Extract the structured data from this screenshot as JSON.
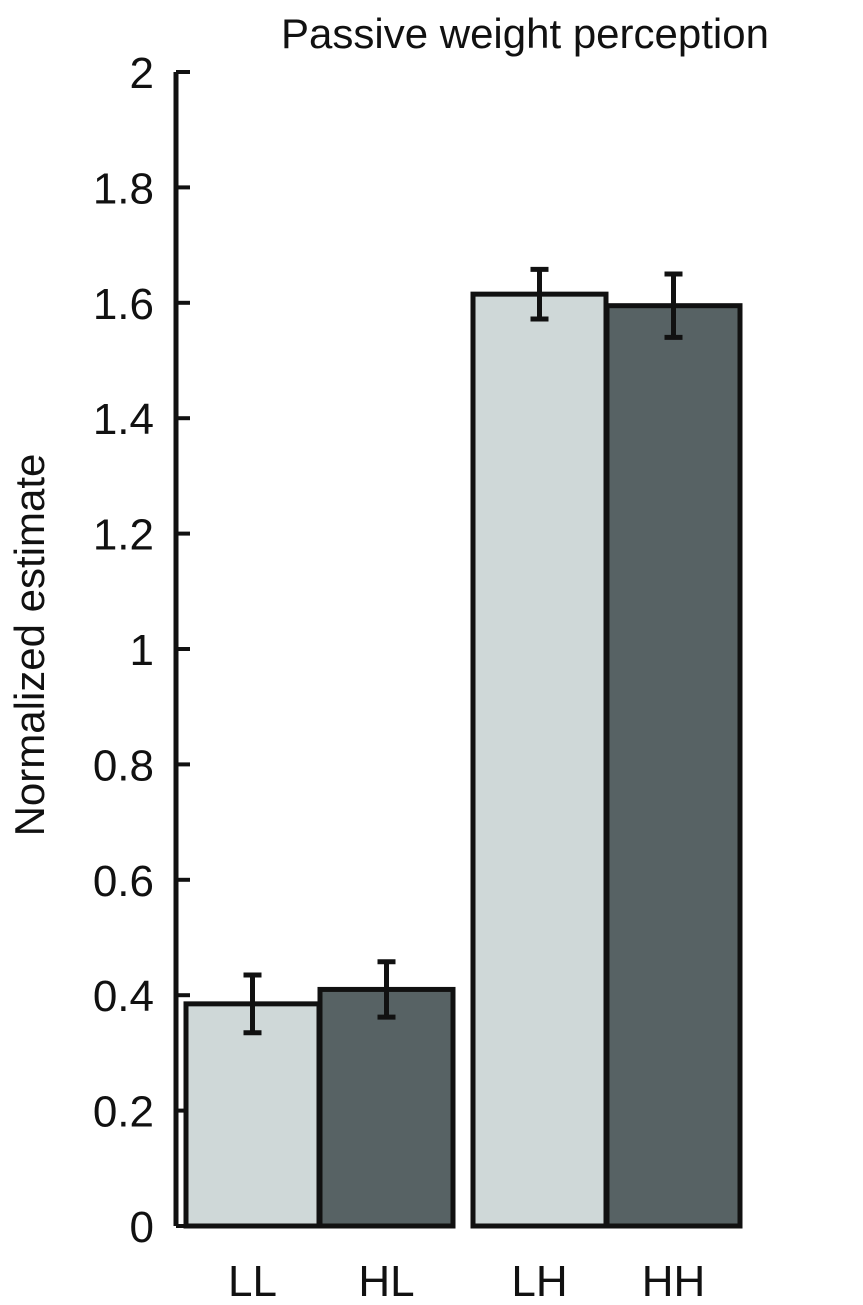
{
  "chart_data": {
    "type": "bar",
    "title": "Passive weight perception",
    "xlabel": "",
    "ylabel": "Normalized estimate",
    "categories": [
      "LL",
      "HL",
      "LH",
      "HH"
    ],
    "values": [
      0.385,
      0.41,
      1.615,
      1.595
    ],
    "error": [
      0.05,
      0.048,
      0.043,
      0.055
    ],
    "bar_colors": [
      "#cfd8d8",
      "#576264",
      "#cfd8d8",
      "#576264"
    ],
    "ylim": [
      0,
      2
    ],
    "yticks": [
      0,
      0.2,
      0.4,
      0.6,
      0.8,
      1,
      1.2,
      1.4,
      1.6,
      1.8,
      2
    ],
    "ytick_labels": [
      "0",
      "0.2",
      "0.4",
      "0.6",
      "0.8",
      "1",
      "1.2",
      "1.4",
      "1.6",
      "1.8",
      "2"
    ],
    "grid": false,
    "legend": "none"
  }
}
